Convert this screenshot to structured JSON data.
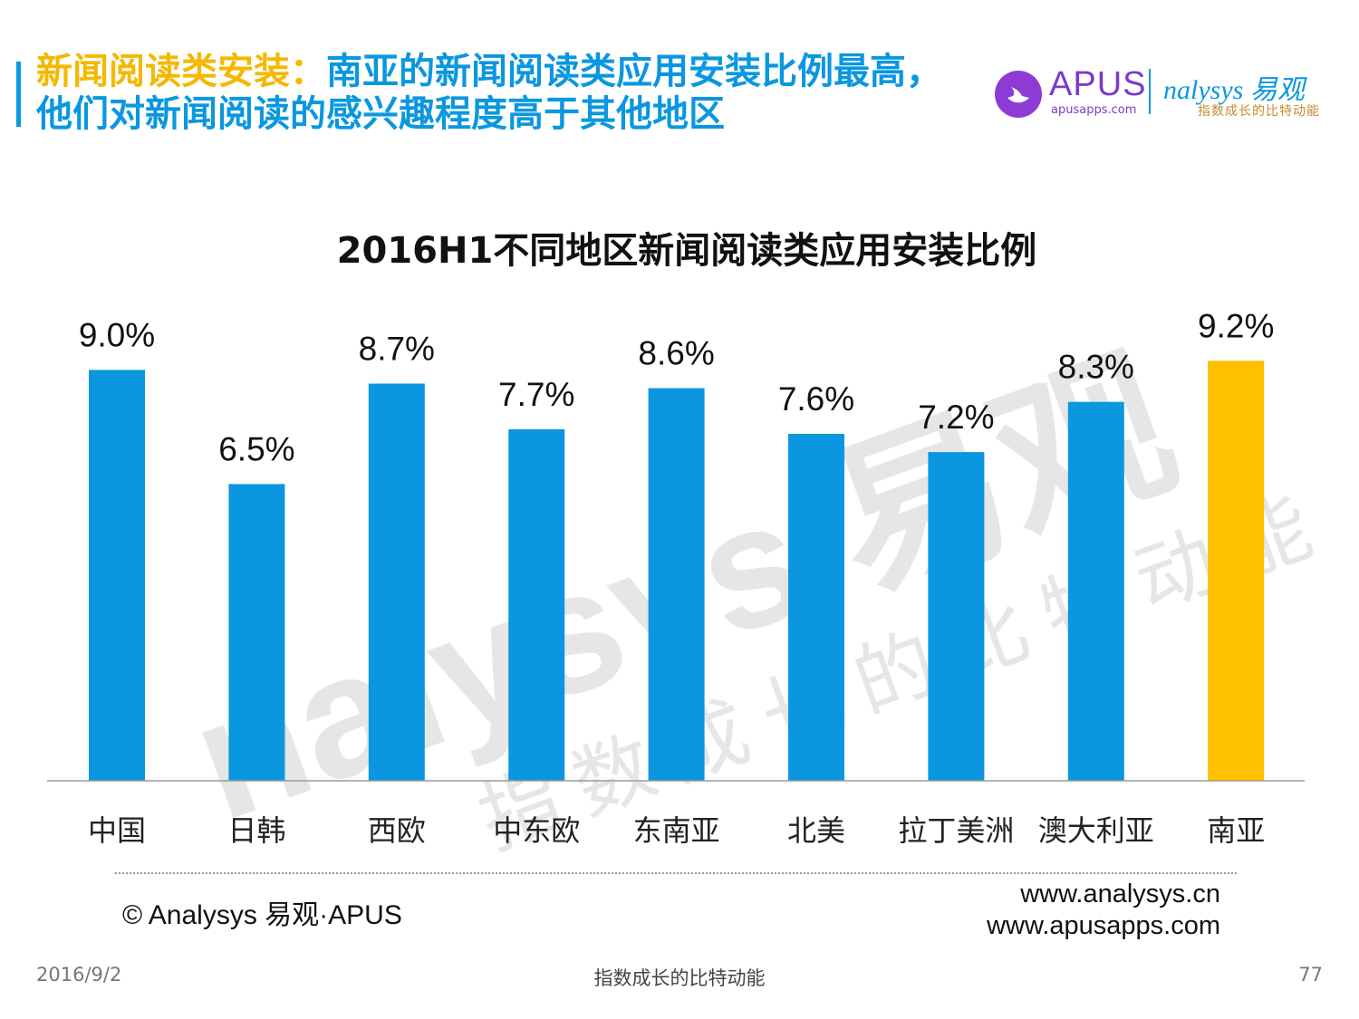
{
  "header": {
    "title_part1": "新闻阅读类安装：",
    "title_part2": "南亚的新闻阅读类应用安装比例最高，他们对新闻阅读的感兴趣程度高于其他地区"
  },
  "logos": {
    "apus_name": "APUS",
    "apus_url": "apusapps.com",
    "analysys_name": "nalysys 易观",
    "analysys_tagline": "指数成长的比特动能"
  },
  "watermark": {
    "brand": "nalysys 易观",
    "tagline": "指数成长的比特动能"
  },
  "chart_data": {
    "type": "bar",
    "title": "2016H1不同地区新闻阅读类应用安装比例",
    "categories": [
      "中国",
      "日韩",
      "西欧",
      "中东欧",
      "东南亚",
      "北美",
      "拉丁美洲",
      "澳大利亚",
      "南亚"
    ],
    "values": [
      9.0,
      6.5,
      8.7,
      7.7,
      8.6,
      7.6,
      7.2,
      8.3,
      9.2
    ],
    "value_labels": [
      "9.0%",
      "6.5%",
      "8.7%",
      "7.7%",
      "8.6%",
      "7.6%",
      "7.2%",
      "8.3%",
      "9.2%"
    ],
    "unit": "%",
    "highlight_index": 8,
    "colors": {
      "bar": "#0a97e0",
      "highlight": "#ffc000",
      "axis": "#9a9a9a"
    },
    "grid": false,
    "legend": "none"
  },
  "source": {
    "copyright": "© Analysys 易观·APUS",
    "url1": "www.analysys.cn",
    "url2": "www.apusapps.com"
  },
  "footer": {
    "date": "2016/9/2",
    "tagline": "指数成长的比特动能",
    "page": "77"
  }
}
